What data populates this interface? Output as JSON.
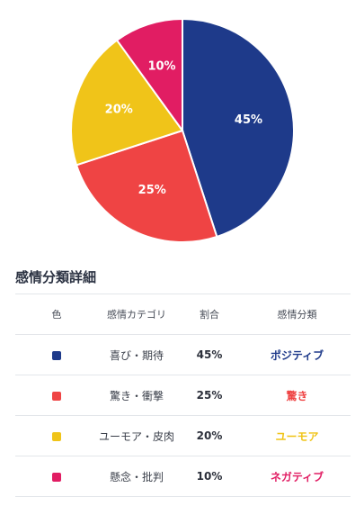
{
  "chart_data": {
    "type": "pie",
    "slices": [
      {
        "label": "45%",
        "value": 45,
        "color": "#1e3a8a"
      },
      {
        "label": "25%",
        "value": 25,
        "color": "#ef4444"
      },
      {
        "label": "20%",
        "value": 20,
        "color": "#f0c419"
      },
      {
        "label": "10%",
        "value": 10,
        "color": "#e11d63"
      }
    ]
  },
  "section": {
    "title": "感情分類詳細"
  },
  "table": {
    "headers": {
      "color": "色",
      "emotion": "感情カテゴリ",
      "ratio": "割合",
      "class": "感情分類"
    },
    "rows": [
      {
        "color": "#1e3a8a",
        "emotion": "喜び・期待",
        "ratio": "45%",
        "class": "ポジティブ",
        "class_color": "#1e3a8a"
      },
      {
        "color": "#ef4444",
        "emotion": "驚き・衝撃",
        "ratio": "25%",
        "class": "驚き",
        "class_color": "#ef4444"
      },
      {
        "color": "#f0c419",
        "emotion": "ユーモア・皮肉",
        "ratio": "20%",
        "class": "ユーモア",
        "class_color": "#f0c419"
      },
      {
        "color": "#e11d63",
        "emotion": "懸念・批判",
        "ratio": "10%",
        "class": "ネガティブ",
        "class_color": "#e11d63"
      }
    ]
  }
}
